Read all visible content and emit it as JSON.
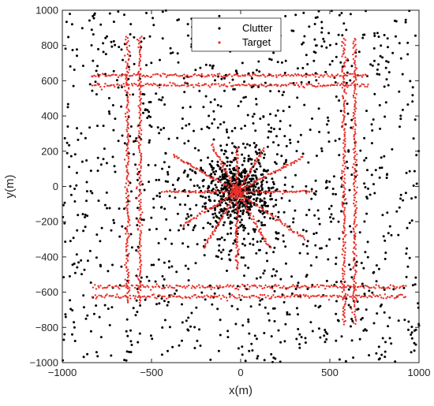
{
  "chart_data": {
    "type": "scatter",
    "title": "",
    "xlabel": "x(m)",
    "ylabel": "y(m)",
    "xlim": [
      -1000,
      1000
    ],
    "ylim": [
      -1000,
      1000
    ],
    "xticks": [
      -1000,
      -500,
      0,
      500,
      1000
    ],
    "yticks": [
      -1000,
      -800,
      -600,
      -400,
      -200,
      0,
      200,
      400,
      600,
      800,
      1000
    ],
    "xtick_labels": [
      "−1000",
      "−500",
      "0",
      "500",
      "1000"
    ],
    "ytick_labels": [
      "−1000",
      "−800",
      "−600",
      "−400",
      "−200",
      "0",
      "200",
      "400",
      "600",
      "800",
      "1000"
    ],
    "grid": false,
    "legend": {
      "position": "top-center",
      "entries": [
        "Clutter",
        "Target"
      ]
    },
    "series": [
      {
        "name": "Clutter",
        "color": "#000000",
        "marker": "dot",
        "description_of_generation": "uniform clutter plus dense central cluster",
        "uniform_count": 1150,
        "central_cluster": {
          "center": [
            -20,
            -20
          ],
          "sigma": 170,
          "count": 650
        }
      },
      {
        "name": "Target",
        "color": "#e8302a",
        "marker": "dot",
        "horizontal_tracks": [
          {
            "y": 630,
            "x": [
              -840,
              710
            ]
          },
          {
            "y": 575,
            "x": [
              -830,
              720
            ]
          },
          {
            "y": -570,
            "x": [
              -830,
              930
            ]
          },
          {
            "y": -625,
            "x": [
              -830,
              930
            ]
          }
        ],
        "vertical_tracks": [
          {
            "x": -635,
            "y": [
              -660,
              860
            ]
          },
          {
            "x": -565,
            "y": [
              -660,
              860
            ]
          },
          {
            "x": 580,
            "y": [
              -780,
              840
            ]
          },
          {
            "x": 640,
            "y": [
              -780,
              840
            ]
          }
        ],
        "radial_tracks": {
          "center": [
            -20,
            -30
          ],
          "rays": [
            {
              "angle_deg": 0,
              "length": 430
            },
            {
              "angle_deg": 180,
              "length": 420
            },
            {
              "angle_deg": 28,
              "length": 420
            },
            {
              "angle_deg": 58,
              "length": 290
            },
            {
              "angle_deg": 90,
              "length": 250
            },
            {
              "angle_deg": 118,
              "length": 310
            },
            {
              "angle_deg": 150,
              "length": 420
            },
            {
              "angle_deg": 212,
              "length": 360
            },
            {
              "angle_deg": 240,
              "length": 370
            },
            {
              "angle_deg": 270,
              "length": 440
            },
            {
              "angle_deg": 300,
              "length": 370
            },
            {
              "angle_deg": 325,
              "length": 470
            }
          ]
        }
      }
    ]
  }
}
